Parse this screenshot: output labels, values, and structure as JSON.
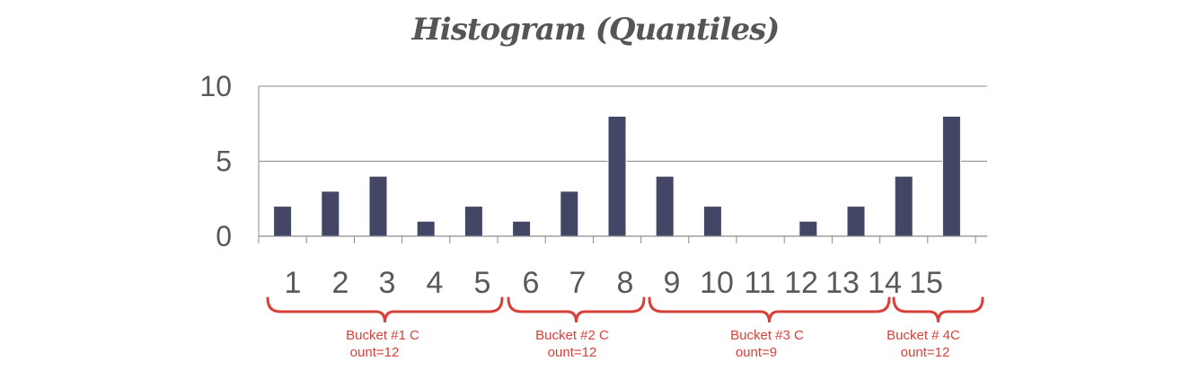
{
  "chart_data": {
    "type": "bar",
    "title": "Histogram (Quantiles)",
    "categories": [
      "1",
      "2",
      "3",
      "4",
      "5",
      "6",
      "7",
      "8",
      "9",
      "10",
      "11",
      "12",
      "13",
      "14",
      "15"
    ],
    "values": [
      2,
      3,
      4,
      1,
      2,
      1,
      3,
      8,
      4,
      2,
      0,
      1,
      2,
      4,
      8
    ],
    "ylim": [
      0,
      10
    ],
    "yticks": [
      "0",
      "5",
      "10"
    ],
    "grid": true,
    "bar_color": "#434664",
    "buckets": [
      {
        "line1": "Bucket #1 C",
        "line2": "ount=12",
        "from": 1,
        "to": 5
      },
      {
        "line1": "Bucket #2 C",
        "line2": "ount=12",
        "from": 6,
        "to": 8
      },
      {
        "line1": "Bucket #3 C",
        "line2": "ount=9",
        "from": 9,
        "to": 13
      },
      {
        "line1": "Bucket # 4C",
        "line2": "ount=12",
        "from": 14,
        "to": 15
      }
    ],
    "bracket_color": "#d9403a"
  }
}
